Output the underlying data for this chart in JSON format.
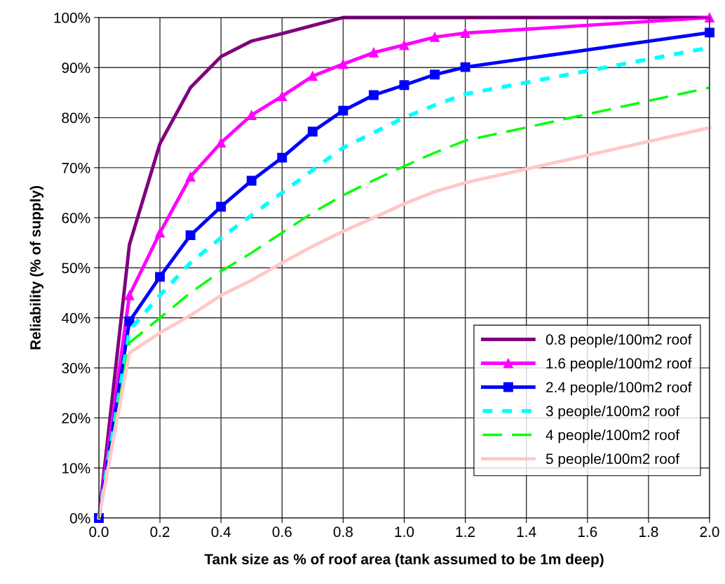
{
  "chart_data": {
    "type": "line",
    "xlabel": "Tank size as % of roof area (tank assumed to be 1m deep)",
    "ylabel": "Reliability (% of supply)",
    "x": [
      0.0,
      0.1,
      0.2,
      0.3,
      0.4,
      0.5,
      0.6,
      0.7,
      0.8,
      0.9,
      1.0,
      1.1,
      1.2,
      2.0
    ],
    "series": [
      {
        "name": "0.8 people/100m2 roof",
        "color": "#800080",
        "marker": "none",
        "line_style": "solid",
        "values": [
          0,
          54.6,
          74.8,
          86,
          92.2,
          95.3,
          96.8,
          98.4,
          100,
          100,
          100,
          100,
          100,
          100
        ]
      },
      {
        "name": "1.6 people/100m2 roof",
        "color": "#ff00ff",
        "marker": "triangle",
        "line_style": "solid",
        "values": [
          0,
          44.5,
          57,
          68.2,
          75,
          80.5,
          84.3,
          88.3,
          90.7,
          93,
          94.5,
          96.1,
          96.9,
          100
        ]
      },
      {
        "name": "2.4 people/100m2 roof",
        "color": "#0000ff",
        "marker": "square",
        "line_style": "solid",
        "values": [
          0,
          39.3,
          48.2,
          56.5,
          62.2,
          67.4,
          72,
          77.2,
          81.4,
          84.5,
          86.5,
          88.6,
          90.1,
          97
        ]
      },
      {
        "name": "3 people/100m2 roof",
        "color": "#00ffff",
        "marker": "none",
        "line_style": "dotted",
        "values": [
          0,
          37.5,
          44.5,
          51,
          56,
          60.5,
          65,
          69.5,
          74,
          77,
          80,
          82.5,
          84.7,
          94
        ]
      },
      {
        "name": "4 people/100m2 roof",
        "color": "#00ff00",
        "marker": "none",
        "line_style": "dashed",
        "values": [
          0,
          35,
          40,
          45,
          49.3,
          53,
          57,
          61,
          64.5,
          67.5,
          70.3,
          73,
          75.4,
          86
        ]
      },
      {
        "name": "5 people/100m2 roof",
        "color": "#ffc8c8",
        "marker": "none",
        "line_style": "solid",
        "values": [
          0,
          33,
          37,
          40.5,
          44.5,
          47.5,
          51,
          54.3,
          57.3,
          60,
          62.8,
          65.2,
          67,
          78
        ]
      }
    ],
    "xlim": [
      0,
      2
    ],
    "xticks": [
      {
        "value": 0,
        "label": "0.0"
      },
      {
        "value": 0.2,
        "label": "0.2"
      },
      {
        "value": 0.4,
        "label": "0.4"
      },
      {
        "value": 0.6,
        "label": "0.6"
      },
      {
        "value": 0.8,
        "label": "0.8"
      },
      {
        "value": 1.0,
        "label": "1.0"
      },
      {
        "value": 1.2,
        "label": "1.2"
      },
      {
        "value": 1.4,
        "label": "1.4"
      },
      {
        "value": 1.6,
        "label": "1.6"
      },
      {
        "value": 1.8,
        "label": "1.8"
      },
      {
        "value": 2.0,
        "label": "2.0"
      }
    ],
    "ylim": [
      0,
      100
    ],
    "yticks": [
      {
        "value": 0,
        "label": "0%"
      },
      {
        "value": 10,
        "label": "10%"
      },
      {
        "value": 20,
        "label": "20%"
      },
      {
        "value": 30,
        "label": "30%"
      },
      {
        "value": 40,
        "label": "40%"
      },
      {
        "value": 50,
        "label": "50%"
      },
      {
        "value": 60,
        "label": "60%"
      },
      {
        "value": 70,
        "label": "70%"
      },
      {
        "value": 80,
        "label": "80%"
      },
      {
        "value": 90,
        "label": "90%"
      },
      {
        "value": 100,
        "label": "100%"
      }
    ],
    "grid": true,
    "legend": "lower right"
  }
}
